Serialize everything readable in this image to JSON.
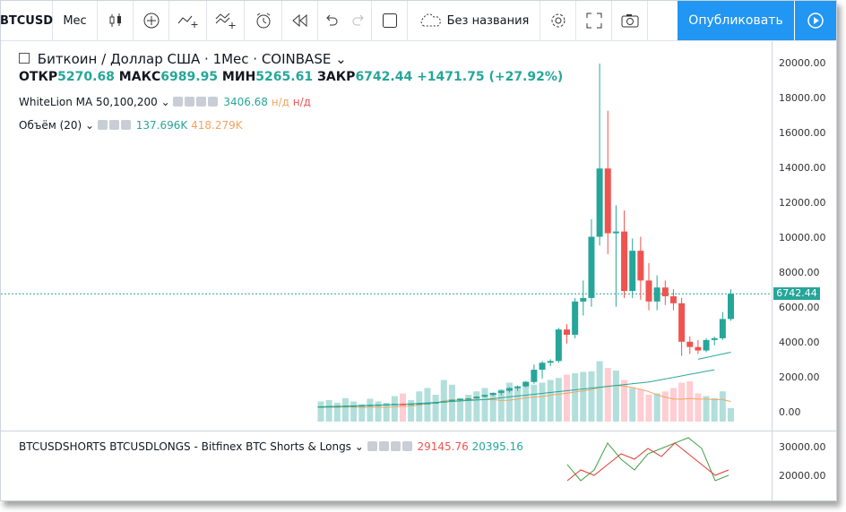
{
  "toolbar": {
    "symbol": "BTCUSD",
    "interval": "Мес",
    "layout_name": "Без названия",
    "publish_label": "Опубликовать",
    "icons": [
      "candles-icon",
      "add-indicator-icon",
      "compare-icon",
      "indicators-icon",
      "alert-icon",
      "replay-icon",
      "undo-icon",
      "redo-icon",
      "layout-icon",
      "cloud-icon",
      "settings-icon",
      "fullscreen-icon",
      "snapshot-icon",
      "play-icon"
    ]
  },
  "legend": {
    "title": "Биткоин / Доллар США · 1Мес · COINBASE",
    "open_label": "ОТКР",
    "open_value": "5270.68",
    "high_label": "МАКС",
    "high_value": "6989.95",
    "low_label": "МИН",
    "low_value": "5265.61",
    "close_label": "ЗАКР",
    "close_value": "6742.44",
    "change": "+1471.75 (+27.92%)"
  },
  "indicators": {
    "ma_name": "WhiteLion MA 50,100,200",
    "ma_val1": "3406.68",
    "ma_val2": "н/д",
    "ma_val3": "н/д",
    "vol_name": "Объём (20)",
    "vol_val1": "137.696K",
    "vol_val2": "418.279K",
    "bottom_name": "BTCUSDSHORTS BTCUSDLONGS - Bitfinex BTC Shorts & Longs",
    "bottom_val1": "29145.76",
    "bottom_val2": "20395.16"
  },
  "price_axis": {
    "ticks": [
      "20000.00",
      "18000.00",
      "16000.00",
      "14000.00",
      "12000.00",
      "10000.00",
      "8000.00",
      "6000.00",
      "4000.00",
      "2000.00",
      "0.00"
    ],
    "last_price": "6742.44",
    "bottom_ticks": [
      "30000.00",
      "20000.00"
    ]
  },
  "colors": {
    "up": "#26a69a",
    "down": "#ef5350",
    "accent": "#2196f3",
    "ma": "#26a69a",
    "vol_ma": "#f4a460"
  },
  "chart_data": {
    "type": "candlestick",
    "candles": [
      {
        "o": 300,
        "h": 320,
        "l": 280,
        "c": 310
      },
      {
        "o": 310,
        "h": 330,
        "l": 300,
        "c": 320
      },
      {
        "o": 320,
        "h": 340,
        "l": 300,
        "c": 330
      },
      {
        "o": 330,
        "h": 350,
        "l": 310,
        "c": 340
      },
      {
        "o": 340,
        "h": 360,
        "l": 320,
        "c": 350
      },
      {
        "o": 350,
        "h": 380,
        "l": 330,
        "c": 370
      },
      {
        "o": 370,
        "h": 400,
        "l": 350,
        "c": 390
      },
      {
        "o": 390,
        "h": 420,
        "l": 370,
        "c": 410
      },
      {
        "o": 410,
        "h": 440,
        "l": 390,
        "c": 430
      },
      {
        "o": 430,
        "h": 460,
        "l": 410,
        "c": 450
      },
      {
        "o": 450,
        "h": 480,
        "l": 420,
        "c": 440
      },
      {
        "o": 440,
        "h": 480,
        "l": 420,
        "c": 460
      },
      {
        "o": 460,
        "h": 500,
        "l": 440,
        "c": 480
      },
      {
        "o": 480,
        "h": 520,
        "l": 460,
        "c": 500
      },
      {
        "o": 500,
        "h": 560,
        "l": 480,
        "c": 540
      },
      {
        "o": 540,
        "h": 620,
        "l": 520,
        "c": 600
      },
      {
        "o": 600,
        "h": 700,
        "l": 580,
        "c": 680
      },
      {
        "o": 680,
        "h": 760,
        "l": 640,
        "c": 740
      },
      {
        "o": 740,
        "h": 800,
        "l": 700,
        "c": 760
      },
      {
        "o": 760,
        "h": 880,
        "l": 740,
        "c": 860
      },
      {
        "o": 860,
        "h": 980,
        "l": 820,
        "c": 960
      },
      {
        "o": 960,
        "h": 1100,
        "l": 900,
        "c": 1080
      },
      {
        "o": 1080,
        "h": 1250,
        "l": 950,
        "c": 1200
      },
      {
        "o": 1200,
        "h": 1400,
        "l": 1100,
        "c": 1350
      },
      {
        "o": 1350,
        "h": 1500,
        "l": 1200,
        "c": 1450
      },
      {
        "o": 1450,
        "h": 1750,
        "l": 1400,
        "c": 1700
      },
      {
        "o": 1700,
        "h": 2700,
        "l": 1600,
        "c": 2400
      },
      {
        "o": 2400,
        "h": 2900,
        "l": 1900,
        "c": 2800
      },
      {
        "o": 2800,
        "h": 3000,
        "l": 2600,
        "c": 2900
      },
      {
        "o": 2900,
        "h": 4800,
        "l": 2800,
        "c": 4700
      },
      {
        "o": 4700,
        "h": 5000,
        "l": 3900,
        "c": 4400
      },
      {
        "o": 4400,
        "h": 6500,
        "l": 4200,
        "c": 6300
      },
      {
        "o": 6300,
        "h": 7500,
        "l": 5500,
        "c": 6500
      },
      {
        "o": 6500,
        "h": 11000,
        "l": 6000,
        "c": 10000
      },
      {
        "o": 10000,
        "h": 19900,
        "l": 9500,
        "c": 13900
      },
      {
        "o": 13900,
        "h": 17200,
        "l": 9000,
        "c": 10200
      },
      {
        "o": 10200,
        "h": 11800,
        "l": 6000,
        "c": 10300
      },
      {
        "o": 10300,
        "h": 11500,
        "l": 6500,
        "c": 6900
      },
      {
        "o": 6900,
        "h": 9900,
        "l": 6500,
        "c": 9200
      },
      {
        "o": 9200,
        "h": 10000,
        "l": 6400,
        "c": 7500
      },
      {
        "o": 7500,
        "h": 8500,
        "l": 5800,
        "c": 6300
      },
      {
        "o": 6300,
        "h": 7800,
        "l": 5800,
        "c": 7100
      },
      {
        "o": 7100,
        "h": 7500,
        "l": 6100,
        "c": 6600
      },
      {
        "o": 6600,
        "h": 7000,
        "l": 5800,
        "c": 6200
      },
      {
        "o": 6200,
        "h": 6500,
        "l": 3200,
        "c": 4000
      },
      {
        "o": 4000,
        "h": 4300,
        "l": 3300,
        "c": 3700
      },
      {
        "o": 3700,
        "h": 4100,
        "l": 3300,
        "c": 3500
      },
      {
        "o": 3500,
        "h": 4200,
        "l": 3400,
        "c": 4100
      },
      {
        "o": 4100,
        "h": 4300,
        "l": 3800,
        "c": 4200
      },
      {
        "o": 4200,
        "h": 5700,
        "l": 4100,
        "c": 5300
      },
      {
        "o": 5300,
        "h": 7000,
        "l": 5200,
        "c": 6742
      }
    ],
    "volume": [
      0.3,
      0.32,
      0.28,
      0.35,
      0.3,
      0.26,
      0.34,
      0.3,
      0.28,
      0.38,
      0.42,
      0.32,
      0.45,
      0.5,
      0.4,
      0.62,
      0.55,
      0.35,
      0.4,
      0.45,
      0.5,
      0.42,
      0.48,
      0.58,
      0.52,
      0.6,
      0.55,
      0.58,
      0.62,
      0.65,
      0.7,
      0.72,
      0.74,
      0.75,
      0.9,
      0.8,
      0.76,
      0.62,
      0.5,
      0.48,
      0.4,
      0.42,
      0.45,
      0.5,
      0.58,
      0.6,
      0.42,
      0.38,
      0.35,
      0.45,
      0.2
    ],
    "ylim": [
      0,
      20000
    ],
    "ma": [
      {
        "x": 0,
        "y": 280
      },
      {
        "x": 25,
        "y": 900
      },
      {
        "x": 50,
        "y": 2400
      }
    ],
    "shorts": [
      0.2,
      0.4,
      0.3,
      0.5,
      0.7,
      0.6,
      0.8,
      0.65,
      0.9,
      0.7,
      0.5,
      0.3,
      0.4
    ],
    "longs": [
      0.5,
      0.2,
      0.4,
      0.9,
      0.6,
      0.4,
      0.7,
      0.8,
      0.9,
      1.0,
      0.8,
      0.2,
      0.3
    ]
  }
}
